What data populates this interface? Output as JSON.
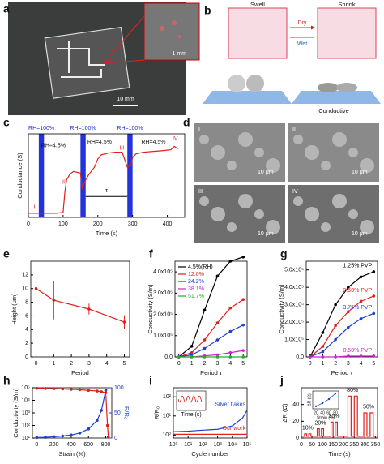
{
  "panel_labels": [
    "a",
    "b",
    "c",
    "d",
    "e",
    "f",
    "g",
    "h",
    "i",
    "j"
  ],
  "photo_a": {
    "inset_scale": "1 mm",
    "scale": "10 mm"
  },
  "schematic_b": {
    "swell": "Swell",
    "shrink": "Shrink",
    "dry": "Dry",
    "wet": "Wet",
    "conductive": "Conductive"
  },
  "sem_d": {
    "labels": [
      "I",
      "II",
      "III",
      "IV"
    ],
    "scale": [
      "10 μm",
      "10 μm",
      "10 μm",
      "10 μm"
    ]
  },
  "chart_data": [
    {
      "type": "line",
      "x_label": "Time (s)",
      "y_label": "Conductance (S)",
      "xlim": [
        0,
        450
      ],
      "xticks": [
        0,
        100,
        200,
        300,
        400
      ],
      "ylim": [
        0,
        1
      ],
      "bands": [
        [
          30,
          45
        ],
        [
          150,
          165
        ],
        [
          285,
          300
        ]
      ],
      "band_color": "#2233dd",
      "band_labels": [
        "RH=100%",
        "RH=100%",
        "RH=100%"
      ],
      "stage_labels": [
        "RH=4.5%",
        "RH=4.5%",
        "RH=4.5%"
      ],
      "phase_labels": [
        "I",
        "II",
        "III",
        "IV"
      ],
      "period_label": "τ",
      "series": [
        {
          "color": "#e0201b",
          "x": [
            0,
            20,
            40,
            60,
            80,
            100,
            105,
            110,
            120,
            130,
            150,
            155,
            165,
            175,
            190,
            200,
            210,
            230,
            250,
            270,
            285,
            295,
            300,
            310,
            330,
            360,
            390,
            410,
            420,
            430
          ],
          "values": [
            0.05,
            0.05,
            0.05,
            0.05,
            0.05,
            0.06,
            0.3,
            0.45,
            0.52,
            0.55,
            0.53,
            0.35,
            0.45,
            0.52,
            0.6,
            0.7,
            0.75,
            0.77,
            0.78,
            0.78,
            0.6,
            0.62,
            0.72,
            0.76,
            0.78,
            0.79,
            0.8,
            0.81,
            0.85,
            0.82
          ]
        }
      ]
    },
    {
      "type": "line",
      "x_label": "Period",
      "y_label": "Height (μm)",
      "xlim": [
        -0.3,
        5.3
      ],
      "xticks": [
        0,
        1,
        2,
        3,
        4,
        5
      ],
      "ylim": [
        0,
        14
      ],
      "yticks": [
        0,
        2,
        4,
        6,
        8,
        10,
        12
      ],
      "markers": true,
      "series": [
        {
          "color": "#e0201b",
          "x": [
            0,
            1,
            3,
            5
          ],
          "values": [
            10,
            8.3,
            7,
            5.1
          ],
          "errors": [
            1.5,
            2.8,
            0.8,
            1.0
          ]
        }
      ]
    },
    {
      "type": "line",
      "x_label": "Period τ",
      "y_label": "Conductivity (S/m)",
      "xlim": [
        -0.3,
        5.3
      ],
      "xticks": [
        0,
        1,
        2,
        3,
        4,
        5
      ],
      "ylim": [
        0,
        450000
      ],
      "yticks": [
        {
          "value": 0,
          "label": "0.0"
        },
        {
          "value": 100000,
          "label": "1.0x10⁵"
        },
        {
          "value": 200000,
          "label": "2.0x10⁵"
        },
        {
          "value": 300000,
          "label": "3.0x10⁵"
        },
        {
          "value": 400000,
          "label": "4.0x10⁵"
        }
      ],
      "markers": true,
      "legend": "upper left",
      "x": [
        0,
        1,
        2,
        3,
        4,
        5
      ],
      "series": [
        {
          "name": "4.5%(RH)",
          "color": "#000000",
          "values": [
            0,
            50000,
            220000,
            380000,
            450000,
            470000
          ]
        },
        {
          "name": "12.0%",
          "color": "#e0201b",
          "values": [
            0,
            20000,
            80000,
            160000,
            230000,
            270000
          ]
        },
        {
          "name": "24.2%",
          "color": "#1f3fd0",
          "values": [
            0,
            10000,
            40000,
            80000,
            120000,
            150000
          ]
        },
        {
          "name": "38.1%",
          "color": "#d020d0",
          "values": [
            0,
            0,
            5000,
            10000,
            20000,
            30000
          ]
        },
        {
          "name": "51.7%",
          "color": "#20b020",
          "values": [
            0,
            0,
            0,
            0,
            0,
            0
          ]
        }
      ]
    },
    {
      "type": "line",
      "x_label": "Period τ",
      "y_label": "Conductivity (S/m)",
      "xlim": [
        -0.3,
        5.3
      ],
      "xticks": [
        0,
        1,
        2,
        3,
        4,
        5
      ],
      "ylim": [
        0,
        550000
      ],
      "yticks": [
        {
          "value": 0,
          "label": "0.0"
        },
        {
          "value": 100000,
          "label": "1.0x10⁵"
        },
        {
          "value": 200000,
          "label": "2.0x10⁵"
        },
        {
          "value": 300000,
          "label": "3.0x10⁵"
        },
        {
          "value": 400000,
          "label": "4.0x10⁵"
        },
        {
          "value": 500000,
          "label": "5.0x10⁵"
        }
      ],
      "markers": true,
      "legend": "inline",
      "x": [
        0,
        1,
        2,
        3,
        4,
        5
      ],
      "series": [
        {
          "name": "1.25% PVP",
          "color": "#000000",
          "values": [
            0,
            140000,
            300000,
            400000,
            460000,
            490000
          ]
        },
        {
          "name": "2.50% PVP",
          "color": "#e0201b",
          "values": [
            0,
            60000,
            180000,
            260000,
            320000,
            350000
          ]
        },
        {
          "name": "3.75% PVP",
          "color": "#1f3fd0",
          "values": [
            0,
            30000,
            100000,
            170000,
            220000,
            250000
          ]
        },
        {
          "name": "0.50% PVP",
          "color": "#d020d0",
          "values": [
            0,
            0,
            0,
            5000,
            5000,
            5000
          ]
        }
      ]
    },
    {
      "type": "line",
      "x_label": "Strain (%)",
      "y_label": "Conductivity (S/m)",
      "y2_label": "R/R₀",
      "xlim": [
        -50,
        870
      ],
      "xticks": [
        0,
        200,
        400,
        600,
        800
      ],
      "ylog": true,
      "ylim": [
        10,
        100000
      ],
      "yticks": [
        {
          "value": 10,
          "label": "10¹"
        },
        {
          "value": 100,
          "label": "10²"
        },
        {
          "value": 1000,
          "label": "10³"
        },
        {
          "value": 10000,
          "label": "10⁴"
        },
        {
          "value": 100000,
          "label": "10⁵"
        }
      ],
      "y2lim": [
        0,
        100
      ],
      "y2ticks": [
        0,
        50,
        100
      ],
      "markers": true,
      "series": [
        {
          "color": "#e0201b",
          "x": [
            0,
            100,
            200,
            300,
            400,
            500,
            600,
            700,
            750,
            800,
            820,
            830
          ],
          "values": [
            90000,
            88000,
            85000,
            80000,
            75000,
            70000,
            62000,
            55000,
            48000,
            40000,
            100,
            12
          ]
        },
        {
          "color": "#1f3fd0",
          "axis": "y2",
          "x": [
            0,
            100,
            200,
            300,
            400,
            500,
            600,
            700,
            750,
            800
          ],
          "values": [
            1,
            1.5,
            2.5,
            4,
            6,
            10,
            18,
            35,
            55,
            95
          ]
        }
      ]
    },
    {
      "type": "line",
      "x_label": "Cycle number",
      "y_label": "R/R₀",
      "xlog": true,
      "xlim": [
        1,
        100000
      ],
      "xticks": [
        {
          "value": 1,
          "label": "10⁰"
        },
        {
          "value": 10,
          "label": "10¹"
        },
        {
          "value": 100,
          "label": "10²"
        },
        {
          "value": 1000,
          "label": "10³"
        },
        {
          "value": 10000,
          "label": "10⁴"
        },
        {
          "value": 100000,
          "label": "10⁵"
        }
      ],
      "ylog": true,
      "ylim": [
        0.7,
        300
      ],
      "yticks": [
        {
          "value": 1,
          "label": "10⁰"
        },
        {
          "value": 10,
          "label": "10¹"
        },
        {
          "value": 100,
          "label": "10²"
        }
      ],
      "legend": "inline",
      "inset_label": "Time (s)",
      "x": [
        1,
        10,
        100,
        1000,
        10000,
        50000,
        100000
      ],
      "series": [
        {
          "name": "Silver flakes",
          "color": "#1f3fd0",
          "values": [
            1.5,
            1.6,
            1.8,
            2,
            3,
            8,
            20
          ]
        },
        {
          "name": "Our work",
          "color": "#e0201b",
          "values": [
            1.1,
            1.1,
            1.1,
            1.1,
            1.1,
            1.1,
            1.1
          ]
        }
      ]
    },
    {
      "type": "line",
      "x_label": "Time (s)",
      "y_label": "ΔR (Ω)",
      "xlim": [
        0,
        360
      ],
      "xticks": [
        0,
        50,
        100,
        150,
        200,
        250,
        300,
        350
      ],
      "ylim": [
        0,
        60
      ],
      "yticks": [
        0,
        20,
        40
      ],
      "annotations": [
        "10%",
        "20%",
        "30%",
        "80%",
        "50%"
      ],
      "inset": {
        "x_label": "Strain (%)",
        "y_label": "ΔR (Ω)",
        "xlim": [
          10,
          90
        ],
        "xticks": [
          20,
          40,
          60,
          80
        ],
        "ylim": [
          0,
          35
        ],
        "x": [
          20,
          40,
          60,
          80
        ],
        "values": [
          5,
          11,
          19,
          30
        ]
      },
      "series": [
        {
          "color": "#e0201b",
          "x": [
            0,
            15,
            15,
            25,
            25,
            35,
            35,
            45,
            45,
            75,
            75,
            85,
            85,
            95,
            95,
            105,
            105,
            140,
            140,
            150,
            150,
            160,
            160,
            170,
            170,
            220,
            220,
            235,
            235,
            250,
            250,
            265,
            265,
            295,
            295,
            310,
            310,
            325,
            325,
            340,
            340,
            355
          ],
          "values": [
            2,
            2,
            5,
            5,
            2,
            2,
            5,
            5,
            2,
            2,
            11,
            11,
            2,
            2,
            11,
            11,
            2,
            2,
            19,
            19,
            2,
            2,
            19,
            19,
            2,
            2,
            50,
            50,
            2,
            2,
            50,
            50,
            2,
            2,
            30,
            30,
            2,
            2,
            30,
            30,
            2,
            2
          ]
        }
      ]
    }
  ]
}
